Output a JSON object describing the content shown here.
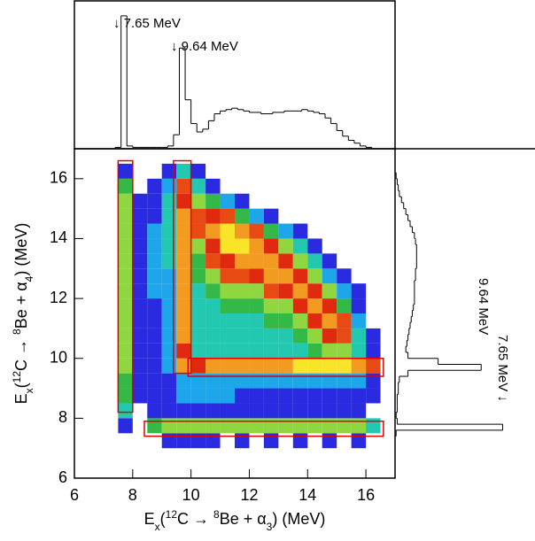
{
  "chart_data": [
    {
      "type": "heatmap",
      "x_label": [
        "E",
        "x",
        "(",
        "12",
        "C → ",
        "8",
        "Be + α",
        "3",
        ") (MeV)"
      ],
      "y_label": [
        "E",
        "x",
        "(",
        "12",
        "C → ",
        "8",
        "Be + α",
        "4",
        ") (MeV)"
      ],
      "xlim": [
        6,
        17
      ],
      "ylim": [
        6,
        17
      ],
      "xticks": [
        6,
        8,
        10,
        12,
        14,
        16
      ],
      "yticks": [
        6,
        8,
        10,
        12,
        14,
        16
      ],
      "x_edges": [
        7.0,
        7.5,
        8.0,
        8.5,
        9.0,
        9.5,
        10.0,
        10.5,
        11.0,
        11.5,
        12.0,
        12.5,
        13.0,
        13.5,
        14.0,
        14.5,
        15.0,
        15.5,
        16.0,
        16.5
      ],
      "y_edges": [
        7.0,
        7.5,
        8.0,
        8.5,
        9.0,
        9.5,
        10.0,
        10.5,
        11.0,
        11.5,
        12.0,
        12.5,
        13.0,
        13.5,
        14.0,
        14.5,
        15.0,
        15.5,
        16.0,
        16.5
      ],
      "z": [
        [
          0,
          0,
          0,
          0,
          1,
          1,
          1,
          1,
          0,
          1,
          0,
          1,
          0,
          1,
          0,
          1,
          0,
          1,
          0
        ],
        [
          0,
          1,
          0,
          4,
          5,
          5,
          5,
          5,
          5,
          5,
          5,
          5,
          5,
          5,
          5,
          5,
          5,
          5,
          3
        ],
        [
          0,
          3,
          0,
          1,
          1,
          1,
          1,
          1,
          1,
          1,
          1,
          1,
          1,
          1,
          1,
          1,
          1,
          1,
          0
        ],
        [
          0,
          4,
          1,
          1,
          1,
          2,
          2,
          2,
          2,
          1,
          1,
          1,
          1,
          1,
          1,
          1,
          1,
          1,
          1
        ],
        [
          0,
          4,
          1,
          1,
          1,
          2,
          2,
          2,
          2,
          2,
          2,
          2,
          2,
          2,
          2,
          2,
          2,
          2,
          1
        ],
        [
          0,
          5,
          1,
          1,
          2,
          8,
          7,
          8,
          8,
          8,
          8,
          8,
          8,
          9,
          9,
          9,
          9,
          8,
          6
        ],
        [
          0,
          5,
          1,
          1,
          2,
          7,
          3,
          3,
          3,
          3,
          3,
          3,
          3,
          3,
          4,
          5,
          5,
          3,
          1
        ],
        [
          0,
          5,
          1,
          1,
          2,
          8,
          3,
          3,
          3,
          3,
          3,
          3,
          3,
          4,
          5,
          7,
          6,
          3,
          1
        ],
        [
          0,
          5,
          1,
          1,
          2,
          8,
          3,
          3,
          3,
          3,
          3,
          4,
          4,
          5,
          7,
          8,
          6,
          2,
          0
        ],
        [
          0,
          5,
          1,
          1,
          2,
          8,
          3,
          3,
          4,
          4,
          4,
          5,
          5,
          7,
          8,
          7,
          4,
          1,
          0
        ],
        [
          0,
          5,
          1,
          2,
          2,
          8,
          3,
          4,
          5,
          5,
          5,
          6,
          7,
          8,
          7,
          5,
          2,
          1,
          0
        ],
        [
          0,
          5,
          1,
          2,
          2,
          8,
          4,
          5,
          6,
          6,
          7,
          8,
          8,
          7,
          5,
          2,
          1,
          0,
          0
        ],
        [
          0,
          5,
          1,
          2,
          3,
          8,
          4,
          6,
          7,
          8,
          8,
          8,
          7,
          5,
          3,
          1,
          0,
          0,
          0
        ],
        [
          0,
          5,
          1,
          2,
          3,
          8,
          5,
          7,
          9,
          9,
          8,
          7,
          5,
          3,
          1,
          0,
          0,
          0,
          0
        ],
        [
          0,
          5,
          1,
          2,
          3,
          8,
          6,
          8,
          9,
          8,
          6,
          4,
          2,
          1,
          0,
          0,
          0,
          0,
          0
        ],
        [
          0,
          5,
          1,
          1,
          3,
          8,
          6,
          7,
          6,
          4,
          2,
          1,
          0,
          0,
          0,
          0,
          0,
          0,
          0
        ],
        [
          0,
          5,
          1,
          1,
          3,
          7,
          5,
          4,
          2,
          1,
          0,
          0,
          0,
          0,
          0,
          0,
          0,
          0,
          0
        ],
        [
          0,
          4,
          0,
          1,
          2,
          6,
          3,
          1,
          0,
          0,
          0,
          0,
          0,
          0,
          0,
          0,
          0,
          0,
          0
        ],
        [
          0,
          1,
          0,
          0,
          1,
          3,
          1,
          0,
          0,
          0,
          0,
          0,
          0,
          0,
          0,
          0,
          0,
          0,
          0
        ]
      ],
      "colors": [
        "none",
        "#2a2ae0",
        "#1ea6ea",
        "#22c8b0",
        "#34b848",
        "#8fd640",
        "#e84a14",
        "#e02a10",
        "#f39a20",
        "#f8e428"
      ],
      "gates": [
        {
          "x": [
            7.5,
            8.0
          ],
          "y": [
            8.2,
            16.6
          ]
        },
        {
          "x": [
            9.4,
            10.0
          ],
          "y": [
            9.5,
            16.6
          ]
        },
        {
          "x": [
            9.9,
            16.6
          ],
          "y": [
            9.4,
            10.0
          ]
        },
        {
          "x": [
            8.4,
            16.6
          ],
          "y": [
            7.4,
            7.9
          ]
        }
      ],
      "gate_color": "#e00000"
    },
    {
      "type": "histogram",
      "orientation": "vertical",
      "xlim": [
        6,
        17
      ],
      "ylim": [
        0,
        100
      ],
      "bins": [
        7.4,
        7.6,
        7.8,
        8.0,
        8.2,
        8.4,
        8.6,
        8.8,
        9.0,
        9.2,
        9.4,
        9.6,
        9.8,
        10.0,
        10.2,
        10.4,
        10.6,
        10.8,
        11.0,
        11.2,
        11.4,
        11.6,
        11.8,
        12.0,
        12.2,
        12.4,
        12.6,
        12.8,
        13.0,
        13.2,
        13.4,
        13.6,
        13.8,
        14.0,
        14.2,
        14.4,
        14.6,
        14.8,
        15.0,
        15.2,
        15.4,
        15.6,
        15.8,
        16.0,
        16.2
      ],
      "values": [
        1,
        95,
        2,
        1,
        1,
        1,
        1,
        1,
        1,
        2,
        10,
        72,
        35,
        18,
        12,
        14,
        20,
        25,
        27,
        28,
        29,
        28,
        27,
        26,
        26,
        25,
        25,
        26,
        26,
        27,
        27,
        27,
        28,
        27,
        26,
        25,
        22,
        18,
        13,
        9,
        6,
        4,
        2,
        1
      ],
      "annotations": [
        "↓ 7.65 MeV",
        "↓ 9.64 MeV"
      ]
    },
    {
      "type": "histogram",
      "orientation": "horizontal",
      "xlim": [
        0,
        130
      ],
      "ylim": [
        6,
        17
      ],
      "bins": [
        7.4,
        7.6,
        7.8,
        8.0,
        8.2,
        8.4,
        8.6,
        8.8,
        9.0,
        9.2,
        9.4,
        9.6,
        9.8,
        10.0,
        10.2,
        10.4,
        10.6,
        10.8,
        11.0,
        11.2,
        11.4,
        11.6,
        11.8,
        12.0,
        12.2,
        12.4,
        12.6,
        12.8,
        13.0,
        13.2,
        13.4,
        13.6,
        13.8,
        14.0,
        14.2,
        14.4,
        14.6,
        14.8,
        15.0,
        15.2,
        15.4,
        15.6,
        15.8,
        16.0,
        16.2
      ],
      "values": [
        1,
        100,
        2,
        1,
        2,
        2,
        2,
        3,
        3,
        4,
        12,
        80,
        40,
        12,
        10,
        11,
        12,
        13,
        14,
        15,
        16,
        17,
        18,
        18,
        18,
        18,
        19,
        19,
        20,
        20,
        20,
        20,
        19,
        18,
        16,
        14,
        12,
        10,
        8,
        6,
        4,
        3,
        2,
        1
      ],
      "annotations": [
        "9.64 MeV",
        "7.65 MeV ↓"
      ]
    }
  ]
}
